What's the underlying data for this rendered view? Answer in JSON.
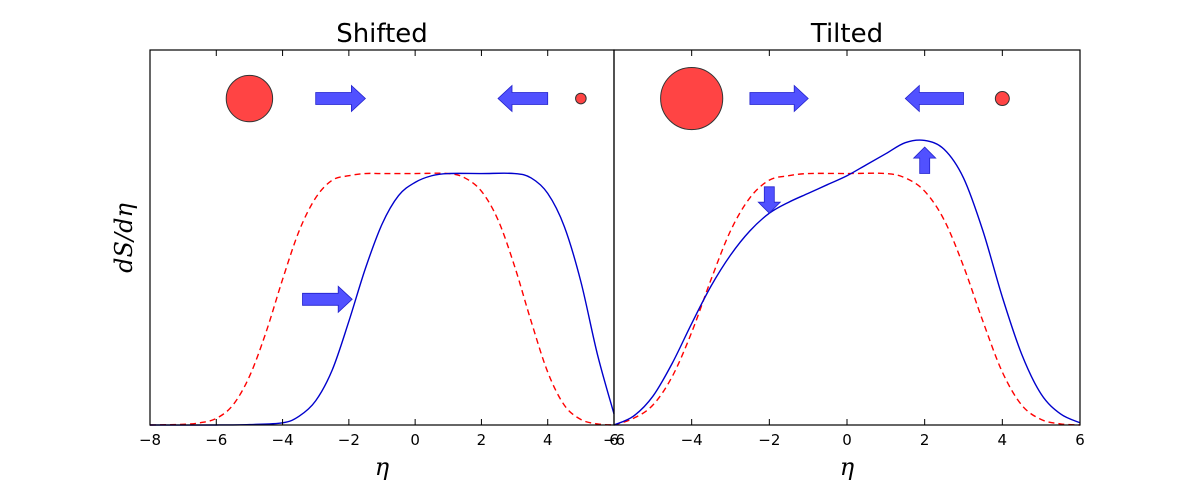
{
  "chart_data": [
    {
      "type": "line",
      "title": "Shifted",
      "xlabel": "η",
      "ylabel": "dS/dη",
      "xlim": [
        -8,
        6
      ],
      "ylim": [
        0,
        1.7
      ],
      "x_ticks": [
        -8,
        -6,
        -4,
        -2,
        0,
        2,
        4,
        6
      ],
      "x_tick_labels": [
        "−8",
        "−6",
        "−4",
        "−2",
        "0",
        "2",
        "4",
        "6"
      ],
      "y_ticks_visible": false,
      "grid": false,
      "series": [
        {
          "style": "dashed",
          "color": "#ff0000",
          "x": [
            -8,
            -7,
            -6.5,
            -6,
            -5.5,
            -5,
            -4.5,
            -4,
            -3.5,
            -3,
            -2.5,
            -2,
            -1.5,
            -1,
            0,
            1,
            1.5,
            2,
            2.5,
            3,
            3.5,
            4,
            4.5,
            5,
            5.5,
            6
          ],
          "y": [
            0.0,
            0.003,
            0.01,
            0.03,
            0.09,
            0.22,
            0.42,
            0.66,
            0.88,
            1.03,
            1.11,
            1.13,
            1.14,
            1.14,
            1.14,
            1.14,
            1.12,
            1.06,
            0.93,
            0.72,
            0.47,
            0.24,
            0.09,
            0.025,
            0.005,
            0.0
          ]
        },
        {
          "style": "solid",
          "color": "#0000cc",
          "x": [
            -8,
            -6,
            -5,
            -4,
            -3.5,
            -3,
            -2.5,
            -2,
            -1.5,
            -1,
            -0.5,
            0,
            0.5,
            1,
            2,
            3,
            3.5,
            4,
            4.5,
            5,
            5.5,
            6
          ],
          "y": [
            0.0,
            0.0,
            0.002,
            0.01,
            0.04,
            0.11,
            0.25,
            0.47,
            0.71,
            0.91,
            1.04,
            1.1,
            1.13,
            1.14,
            1.14,
            1.14,
            1.12,
            1.05,
            0.9,
            0.65,
            0.32,
            0.05
          ]
        }
      ],
      "annotations": [
        {
          "kind": "circle",
          "x": -5,
          "y": 1.48,
          "radius_data": 0.7,
          "color": "#ff4444"
        },
        {
          "kind": "circle",
          "x": 5,
          "y": 1.48,
          "radius_data": 0.16,
          "color": "#ff4444"
        },
        {
          "kind": "arrow",
          "direction": "right",
          "x": -3,
          "y": 1.48,
          "length": 1.5,
          "color": "#3333ff"
        },
        {
          "kind": "arrow",
          "direction": "left",
          "x": 4,
          "y": 1.48,
          "length": 1.5,
          "color": "#3333ff"
        },
        {
          "kind": "arrow",
          "direction": "right",
          "x": -3.4,
          "y": 0.57,
          "length": 1.5,
          "color": "#3333ff"
        }
      ]
    },
    {
      "type": "line",
      "title": "Tilted",
      "xlabel": "η",
      "ylabel": "",
      "xlim": [
        -6,
        6
      ],
      "ylim": [
        0,
        1.7
      ],
      "x_ticks": [
        -6,
        -4,
        -2,
        0,
        2,
        4,
        6
      ],
      "x_tick_labels": [
        "−6",
        "−4",
        "−2",
        "0",
        "2",
        "4",
        "6"
      ],
      "y_ticks_visible": false,
      "grid": false,
      "series": [
        {
          "style": "dashed",
          "color": "#ff0000",
          "x": [
            -6,
            -5.5,
            -5,
            -4.5,
            -4,
            -3.5,
            -3,
            -2.5,
            -2,
            -1.5,
            -1,
            0,
            1,
            1.5,
            2,
            2.5,
            3,
            3.5,
            4,
            4.5,
            5,
            5.5,
            6
          ],
          "y": [
            0.0,
            0.03,
            0.09,
            0.22,
            0.42,
            0.66,
            0.88,
            1.03,
            1.11,
            1.13,
            1.14,
            1.14,
            1.14,
            1.12,
            1.06,
            0.93,
            0.72,
            0.47,
            0.24,
            0.09,
            0.025,
            0.005,
            0.0
          ]
        },
        {
          "style": "solid",
          "color": "#0000cc",
          "x": [
            -6,
            -5.5,
            -5,
            -4.5,
            -4,
            -3.5,
            -3,
            -2.5,
            -2,
            -1.5,
            -1,
            -0.5,
            0,
            0.5,
            1,
            1.5,
            2,
            2.5,
            3,
            3.5,
            4,
            4.5,
            5,
            5.5,
            6
          ],
          "y": [
            0.0,
            0.04,
            0.13,
            0.28,
            0.46,
            0.63,
            0.77,
            0.88,
            0.96,
            1.01,
            1.05,
            1.09,
            1.13,
            1.18,
            1.23,
            1.28,
            1.29,
            1.25,
            1.12,
            0.88,
            0.58,
            0.32,
            0.14,
            0.05,
            0.01
          ]
        }
      ],
      "annotations": [
        {
          "kind": "circle",
          "x": -4,
          "y": 1.48,
          "radius_data": 0.8,
          "color": "#ff4444"
        },
        {
          "kind": "circle",
          "x": 4,
          "y": 1.48,
          "radius_data": 0.18,
          "color": "#ff4444"
        },
        {
          "kind": "arrow",
          "direction": "right",
          "x": -2.5,
          "y": 1.48,
          "length": 1.5,
          "color": "#3333ff"
        },
        {
          "kind": "arrow",
          "direction": "left",
          "x": 3,
          "y": 1.48,
          "length": 1.5,
          "color": "#3333ff"
        },
        {
          "kind": "arrow",
          "direction": "down",
          "x": -2,
          "y": 1.02,
          "length": 0.12,
          "color": "#3333ff"
        },
        {
          "kind": "arrow",
          "direction": "up",
          "x": 2,
          "y": 1.2,
          "length": 0.12,
          "color": "#3333ff"
        }
      ]
    }
  ]
}
